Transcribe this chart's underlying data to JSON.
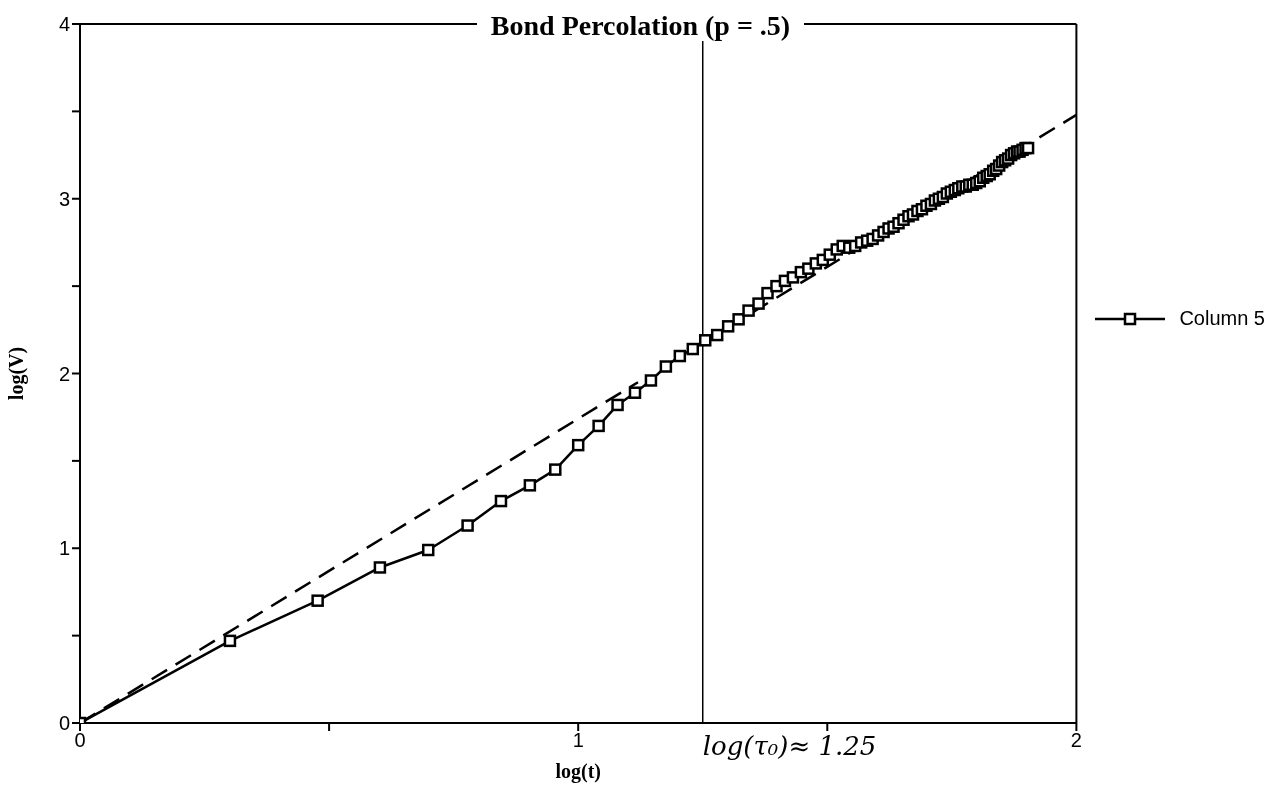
{
  "chart_data": {
    "type": "line",
    "title": "Bond Percolation (p = .5)",
    "xlabel": "log(t)",
    "ylabel": "log(V)",
    "xlim": [
      0,
      2
    ],
    "xticks": [
      0,
      {
        "value": 0.5,
        "label": null
      },
      1,
      {
        "value": 1.5,
        "label": null
      },
      2
    ],
    "ylim": [
      0,
      4
    ],
    "yticks": [
      0,
      {
        "value": 0.5,
        "label": null
      },
      1,
      {
        "value": 1.5,
        "label": null
      },
      2,
      {
        "value": 2.5,
        "label": null
      },
      3,
      {
        "value": 3.5,
        "label": null
      },
      4
    ],
    "grid": false,
    "legend": "right",
    "series": [
      {
        "name": "Column 5",
        "color": "#000000",
        "marker": "square",
        "line_style": "solid",
        "x": [
          0,
          0.301,
          0.477,
          0.602,
          0.699,
          0.778,
          0.845,
          0.903,
          0.954,
          1,
          1.041,
          1.079,
          1.114,
          1.146,
          1.176,
          1.204,
          1.23,
          1.255,
          1.279,
          1.301,
          1.322,
          1.342,
          1.362,
          1.38,
          1.398,
          1.415,
          1.431,
          1.447,
          1.462,
          1.477,
          1.491,
          1.505,
          1.519,
          1.531,
          1.544,
          1.556,
          1.568,
          1.58,
          1.591,
          1.602,
          1.613,
          1.623,
          1.633,
          1.643,
          1.653,
          1.663,
          1.672,
          1.681,
          1.69,
          1.699,
          1.708,
          1.716,
          1.724,
          1.732,
          1.74,
          1.748,
          1.756,
          1.763,
          1.771,
          1.778,
          1.785,
          1.792,
          1.799,
          1.806,
          1.813,
          1.82,
          1.826,
          1.833,
          1.839,
          1.845,
          1.851,
          1.857,
          1.863,
          1.869,
          1.875,
          1.881,
          1.886,
          1.892,
          1.898,
          1.903
        ],
        "values": [
          0,
          0.47,
          0.7,
          0.89,
          0.99,
          1.13,
          1.27,
          1.36,
          1.45,
          1.59,
          1.7,
          1.82,
          1.89,
          1.96,
          2.04,
          2.1,
          2.14,
          2.19,
          2.22,
          2.27,
          2.31,
          2.36,
          2.4,
          2.46,
          2.5,
          2.53,
          2.55,
          2.58,
          2.6,
          2.63,
          2.65,
          2.68,
          2.71,
          2.73,
          2.72,
          2.73,
          2.75,
          2.76,
          2.77,
          2.79,
          2.81,
          2.83,
          2.84,
          2.86,
          2.88,
          2.9,
          2.91,
          2.93,
          2.94,
          2.96,
          2.97,
          2.99,
          3,
          3.01,
          3.03,
          3.04,
          3.05,
          3.06,
          3.07,
          3.07,
          3.08,
          3.08,
          3.09,
          3.1,
          3.12,
          3.13,
          3.14,
          3.16,
          3.17,
          3.19,
          3.21,
          3.22,
          3.23,
          3.25,
          3.26,
          3.27,
          3.27,
          3.28,
          3.29,
          3.29
        ]
      },
      {
        "type": "line",
        "color": "#000000",
        "marker": "none",
        "line_style": "dashed",
        "x": [
          0,
          1.12,
          1.2,
          1.35,
          2
        ],
        "values": [
          0,
          1.95,
          null,
          2.35,
          3.48
        ]
      }
    ],
    "ref_lines": [
      {
        "axis": "x",
        "value": 1.25,
        "label": "log(τ₀)≈ 1.25",
        "color": "#000000"
      }
    ]
  }
}
